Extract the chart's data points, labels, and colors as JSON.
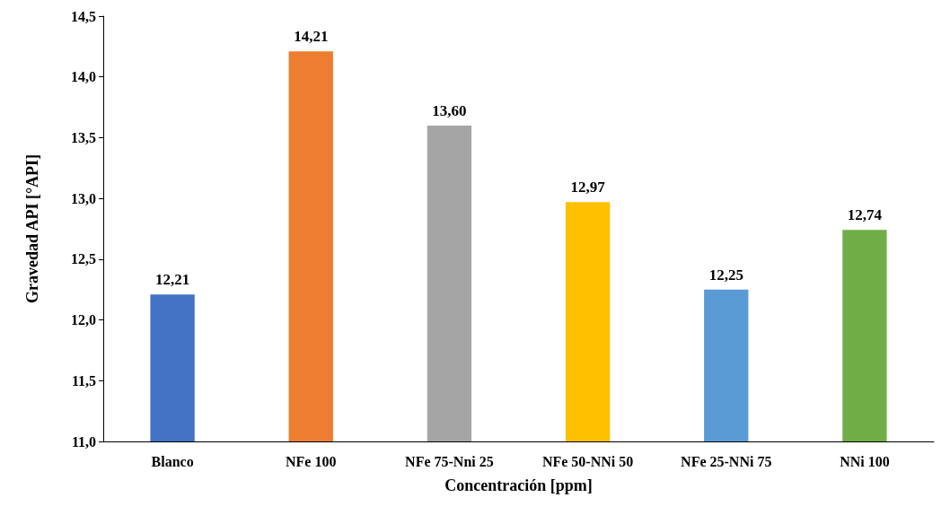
{
  "chart_data": {
    "type": "bar",
    "xlabel": "Concentración [ppm]",
    "ylabel": "Gravedad API [°API]",
    "categories": [
      "Blanco",
      "NFe 100",
      "NFe 75-Nni 25",
      "NFe 50-NNi 50",
      "NFe 25-NNi 75",
      "NNi 100"
    ],
    "values": [
      12.21,
      14.21,
      13.6,
      12.97,
      12.25,
      12.74
    ],
    "colors": [
      "#4472c4",
      "#ed7d31",
      "#a5a5a5",
      "#ffc000",
      "#5b9bd5",
      "#70ad47"
    ],
    "value_labels": [
      "12,21",
      "14,21",
      "13,60",
      "12,97",
      "12,25",
      "12,74"
    ],
    "ylim": [
      11,
      14.5
    ],
    "yticks": [
      {
        "value": 11,
        "label": "11,0"
      },
      {
        "value": 11.5,
        "label": "11,5"
      },
      {
        "value": 12,
        "label": "12,0"
      },
      {
        "value": 12.5,
        "label": "12,5"
      },
      {
        "value": 13,
        "label": "13,0"
      },
      {
        "value": 13.5,
        "label": "13,5"
      },
      {
        "value": 14,
        "label": "14,0"
      },
      {
        "value": 14.5,
        "label": "14,5"
      }
    ],
    "grid": false
  }
}
